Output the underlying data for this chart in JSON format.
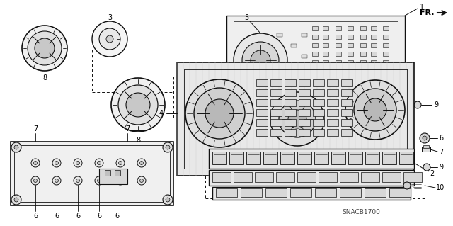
{
  "bg_color": "#ffffff",
  "line_color": "#111111",
  "diagram_code": "SNACB1700",
  "gray1": "#e0e0e0",
  "gray2": "#c8c8c8",
  "gray3": "#a8a8a8",
  "gray4": "#888888"
}
